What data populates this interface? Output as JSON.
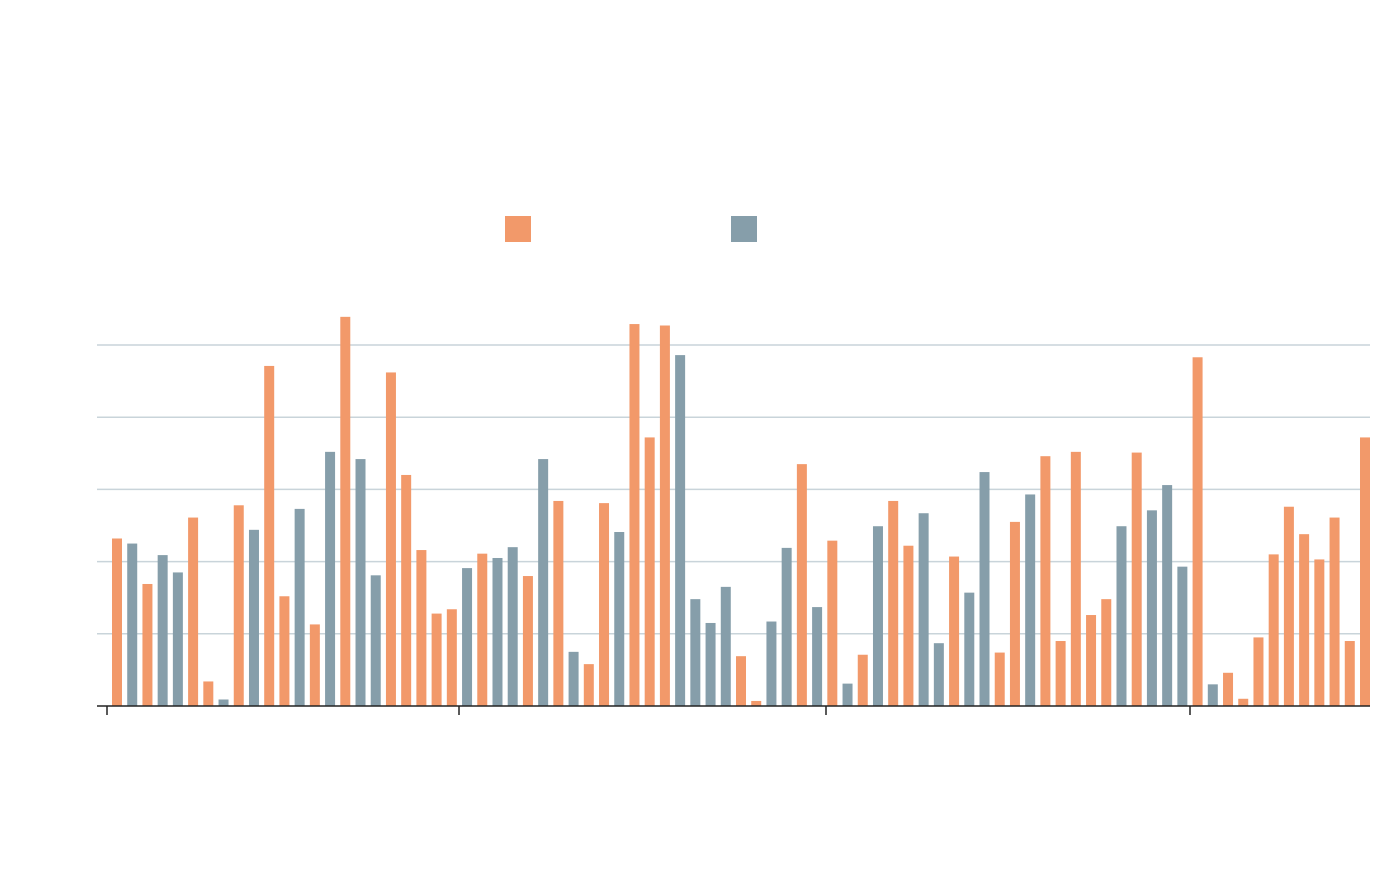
{
  "chart_data": {
    "type": "bar",
    "title": "",
    "xlabel": "",
    "ylabel": "",
    "ylim": [
      0,
      5.4
    ],
    "grid": true,
    "gridlines": [
      1,
      2,
      3,
      4,
      5
    ],
    "legend_position": "top-center",
    "x_tick_count": 4,
    "series": [
      {
        "name": "",
        "color": "#F2996A",
        "values": [
          2.32,
          1.69,
          2.61,
          0.34,
          2.78,
          4.71,
          1.52,
          1.13,
          5.39,
          4.62,
          3.2,
          2.16,
          1.28,
          1.34,
          2.11,
          1.8,
          2.84,
          0.58,
          2.81,
          5.29,
          3.72,
          5.27,
          0.69,
          0.07,
          3.35,
          2.29,
          0.71,
          2.84,
          2.22,
          2.07,
          0.74,
          2.55,
          3.46,
          0.9,
          3.52,
          1.26,
          1.48,
          3.51,
          4.83,
          0.46,
          0.1,
          0.95,
          2.1,
          2.76,
          2.38,
          2.03,
          2.61,
          0.9,
          3.72
        ]
      },
      {
        "name": "",
        "color": "#869EAA",
        "values": [
          2.25,
          2.09,
          1.85,
          0.09,
          2.44,
          2.73,
          3.52,
          3.42,
          1.81,
          1.91,
          2.05,
          2.2,
          3.42,
          0.75,
          2.41,
          4.86,
          1.48,
          1.15,
          1.65,
          1.17,
          2.19,
          1.37,
          0.31,
          2.49,
          2.67,
          0.87,
          1.57,
          3.24,
          2.93,
          2.49,
          2.71,
          3.06,
          1.93,
          0.3
        ]
      }
    ]
  }
}
